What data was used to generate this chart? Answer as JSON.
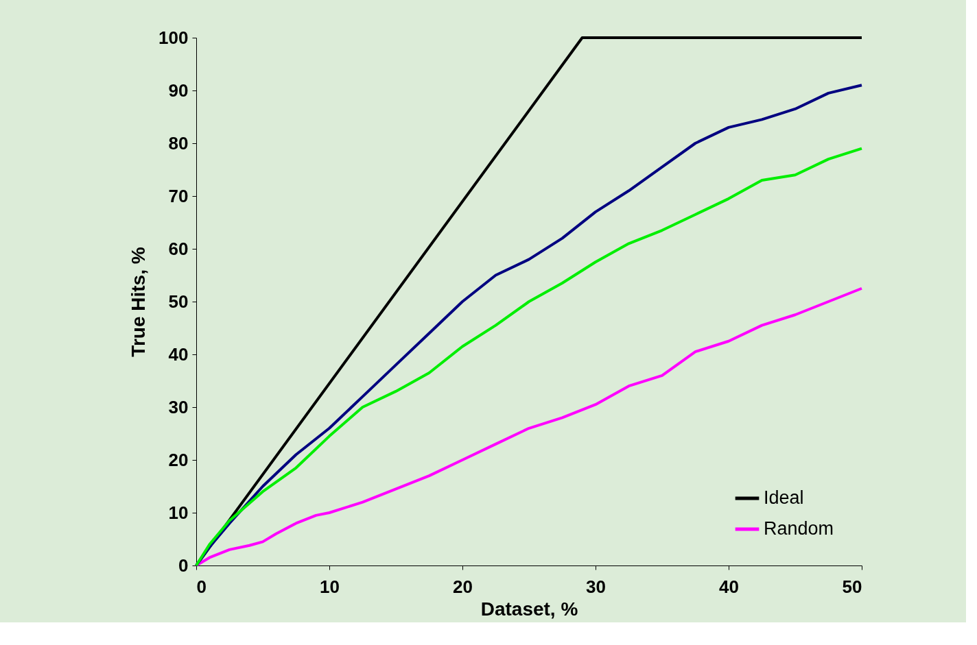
{
  "chart_data": {
    "type": "line",
    "xlabel": "Dataset, %",
    "ylabel": "True Hits, %",
    "xlim": [
      0,
      50
    ],
    "ylim": [
      0,
      100
    ],
    "xticks": [
      0,
      10,
      20,
      30,
      40,
      50
    ],
    "yticks": [
      0,
      10,
      20,
      30,
      40,
      50,
      60,
      70,
      80,
      90,
      100
    ],
    "grid": false,
    "legend": "bottom right",
    "marker": "none",
    "line_style": "solid",
    "series": [
      {
        "name": "Ideal",
        "color": "#000000",
        "x": [
          0,
          29,
          50
        ],
        "values": [
          0,
          100,
          100
        ]
      },
      {
        "name": "Random",
        "color": "#ff00ff",
        "x": [
          0,
          1,
          2.5,
          4,
          5,
          6,
          7.5,
          9,
          10,
          12.5,
          15,
          17.5,
          20,
          22.5,
          25,
          27.5,
          30,
          32.5,
          35,
          37.5,
          40,
          42.5,
          45,
          47.5,
          50
        ],
        "values": [
          0,
          1.5,
          3,
          3.8,
          4.5,
          6,
          8,
          9.5,
          10,
          12,
          14.5,
          17,
          20,
          23,
          26,
          28,
          30.5,
          34,
          36,
          40.5,
          42.5,
          45.5,
          47.5,
          50,
          52.5
        ]
      },
      {
        "color": "#000080",
        "x": [
          0,
          1,
          2.5,
          5,
          7.5,
          10,
          12.5,
          15,
          17.5,
          20,
          22.5,
          25,
          27.5,
          30,
          32.5,
          35,
          37.5,
          40,
          42.5,
          45,
          47.5,
          50
        ],
        "values": [
          0,
          3.5,
          8,
          15,
          21,
          26,
          32,
          38,
          44,
          50,
          55,
          58,
          62,
          67,
          71,
          75.5,
          80,
          83,
          84.5,
          86.5,
          89.5,
          91
        ]
      },
      {
        "color": "#00ee00",
        "x": [
          0,
          1,
          2.5,
          5,
          7.5,
          10,
          12.5,
          15,
          17.5,
          20,
          22.5,
          25,
          27.5,
          30,
          32.5,
          35,
          37.5,
          40,
          42.5,
          45,
          47.5,
          50
        ],
        "values": [
          0,
          4,
          8.5,
          14,
          18.5,
          24.5,
          30,
          33,
          36.5,
          41.5,
          45.5,
          50,
          53.5,
          57.5,
          61,
          63.5,
          66.5,
          69.5,
          73,
          74,
          77,
          79
        ]
      }
    ]
  }
}
